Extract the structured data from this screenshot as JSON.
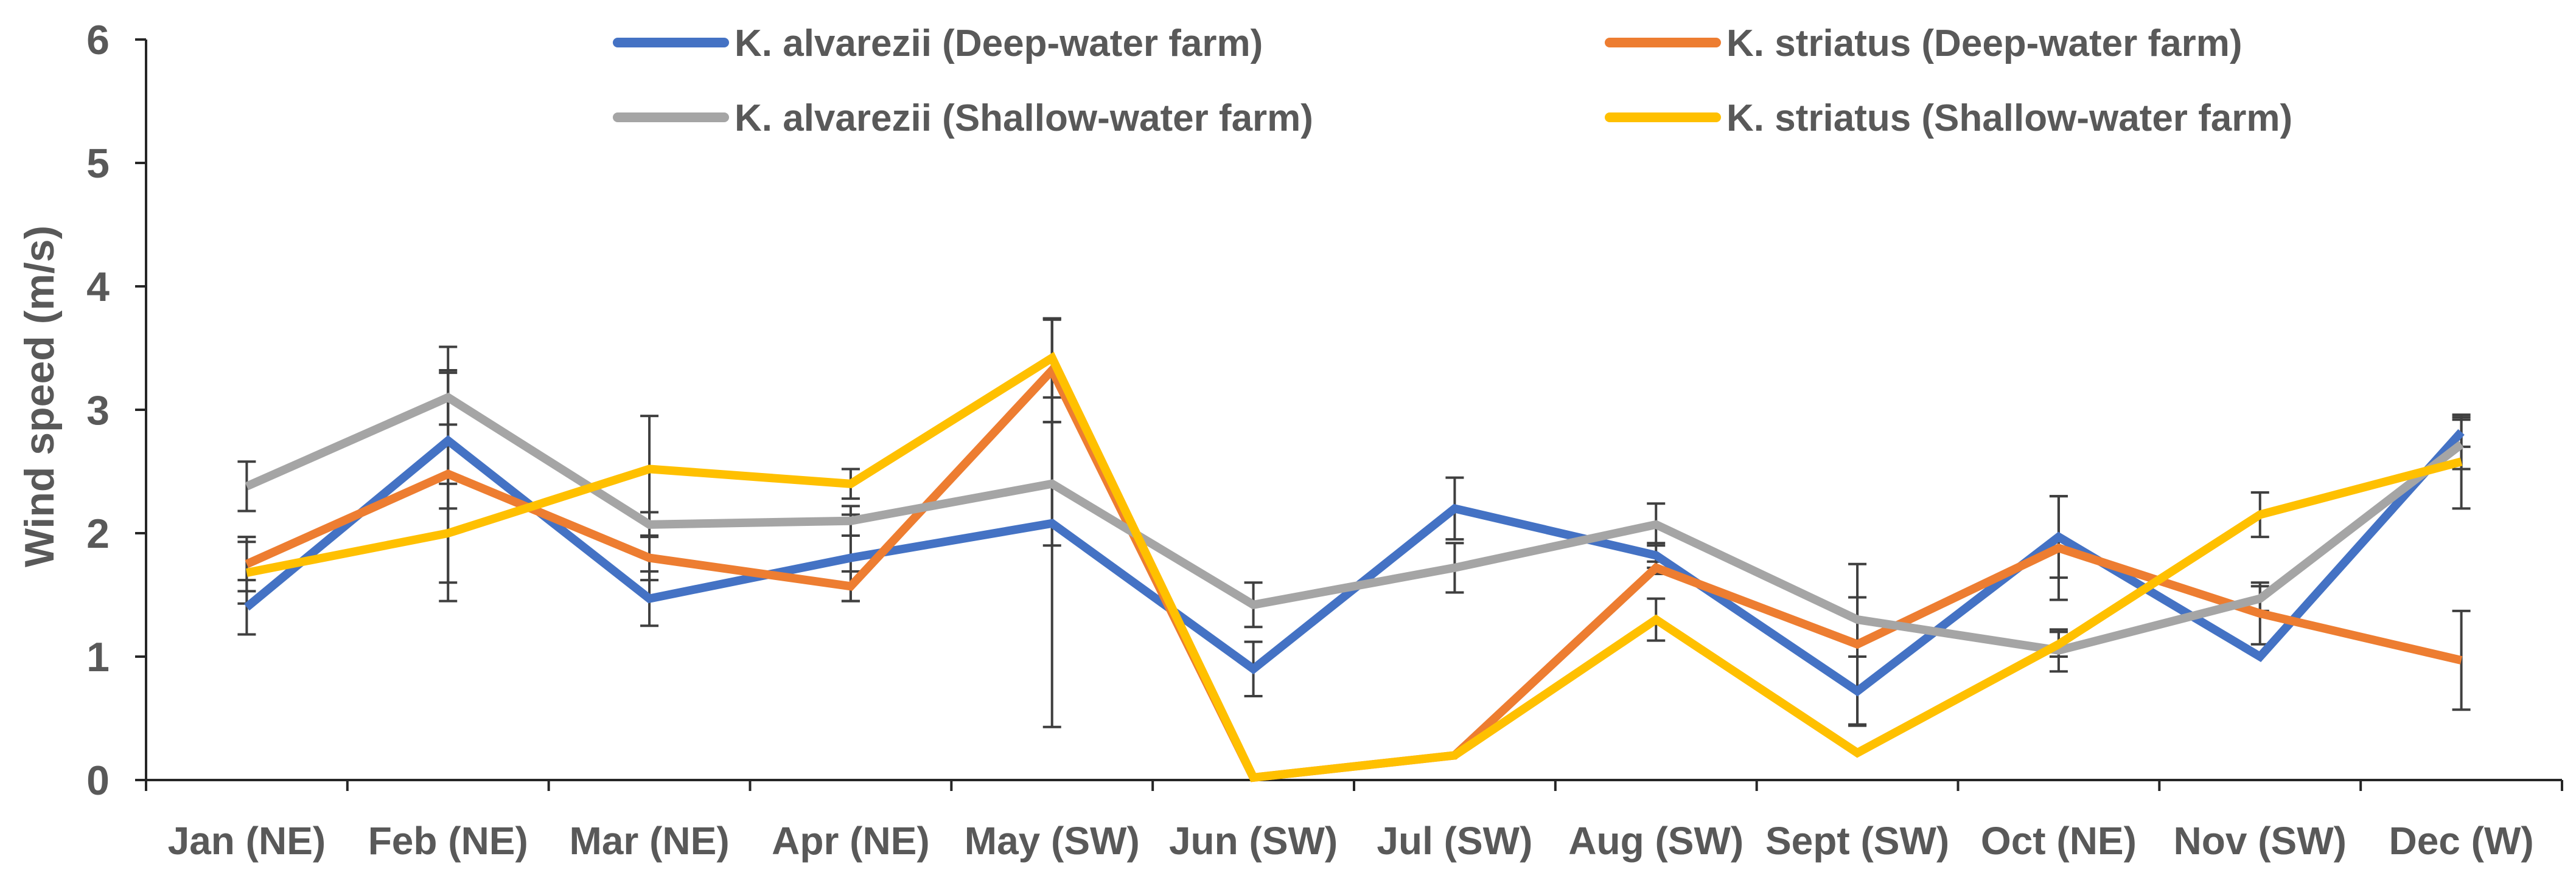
{
  "chart_data": {
    "type": "line",
    "title": "",
    "xlabel": "",
    "ylabel": "Wind speed (m/s)",
    "ylim": [
      0,
      6
    ],
    "yticks": [
      0,
      1,
      2,
      3,
      4,
      5,
      6
    ],
    "grid": false,
    "legend_position": "top",
    "categories": [
      "Jan (NE)",
      "Feb (NE)",
      "Mar (NE)",
      "Apr (NE)",
      "May (SW)",
      "Jun (SW)",
      "Jul (SW)",
      "Aug (SW)",
      "Sept (SW)",
      "Oct (NE)",
      "Nov (SW)",
      "Dec (W)"
    ],
    "series": [
      {
        "name": "K. alvarezii (Deep-water farm)",
        "color": "#4472C4",
        "values": [
          1.4,
          2.75,
          1.47,
          1.8,
          2.08,
          0.9,
          2.2,
          1.82,
          0.72,
          1.97,
          1.0,
          2.82
        ],
        "errors": [
          0.22,
          0.55,
          0.22,
          0.35,
          1.65,
          0.22,
          0.25,
          0.1,
          0.28,
          0.33,
          0.03,
          0.12
        ]
      },
      {
        "name": "K. striatus (Deep-water farm)",
        "color": "#ED7D31",
        "values": [
          1.75,
          2.48,
          1.8,
          1.57,
          3.32,
          0.02,
          0.2,
          1.72,
          1.1,
          1.88,
          1.35,
          0.97
        ],
        "errors": [
          0.22,
          1.03,
          0.18,
          0.12,
          0.42,
          0.02,
          0.02,
          0.05,
          0.65,
          0.42,
          0.25,
          0.4
        ]
      },
      {
        "name": "K. alvarezii (Shallow-water farm)",
        "color": "#A5A5A5",
        "values": [
          2.38,
          3.1,
          2.07,
          2.1,
          2.4,
          1.42,
          1.72,
          2.07,
          1.3,
          1.05,
          1.47,
          2.72
        ],
        "errors": [
          0.2,
          0.22,
          0.1,
          0.12,
          0.5,
          0.18,
          0.2,
          0.17,
          0.18,
          0.17,
          0.1,
          0.2
        ]
      },
      {
        "name": "K. striatus (Shallow-water farm)",
        "color": "#FFC000",
        "values": [
          1.68,
          2.0,
          2.52,
          2.4,
          3.42,
          0.02,
          0.2,
          1.3,
          0.22,
          1.1,
          2.15,
          2.58
        ],
        "errors": [
          0.25,
          0.4,
          0.43,
          0.12,
          0.32,
          0.02,
          0.02,
          0.17,
          0.02,
          0.1,
          0.18,
          0.38
        ]
      }
    ]
  }
}
